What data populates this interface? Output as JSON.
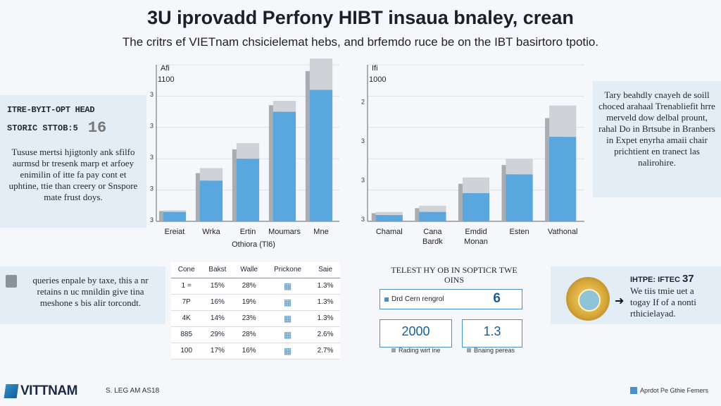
{
  "title": "3U iprovadd Perfony HIBT insaua bnaley, crean",
  "subtitle": "The critrs ef VIETnam chsicielemat hebs, and brfemdo ruce be on the IBT basirtoro tpotio.",
  "left_panel": {
    "head1": "ITRE-BYIT-OPT HEAD",
    "head2": "STORIC STTOB:5",
    "head_big": "16",
    "body": "Tususe mertsi hjigtonly ank sfilfo aurmsd br tresenk marp et arfoey enimilin of itte fa pay cont et uphtine, ttie than creery or Snspore mate frust doys."
  },
  "right_panel": {
    "text": "Tary beahdly cnayeh de soill choced arahaal Trenabliefit hrre merveld dow delbal prount, rahal Do in Brtsube in Branbers in Expet enyrha amaii chair prichtient en tranect las nalirohire."
  },
  "chart_data": [
    {
      "type": "bar",
      "corner_label": "Afi",
      "corner_value": "1100",
      "y_ticks": [
        "3",
        "3",
        "3",
        "3",
        "3"
      ],
      "categories": [
        "Ereiat",
        "Wrka",
        "Ertin",
        "Moumars",
        "Mne"
      ],
      "xlabel": "Othiora (Tl6)",
      "series": [
        {
          "values": [
            0.3,
            1.3,
            2.0,
            3.5,
            4.2
          ]
        },
        {
          "values": [
            0.05,
            0.4,
            0.5,
            0.35,
            1.0
          ]
        }
      ],
      "ylim": [
        0,
        5
      ]
    },
    {
      "type": "bar",
      "corner_label": "Ifi",
      "corner_value": "1000",
      "y_ticks": [
        "3",
        "3",
        "3",
        "2"
      ],
      "categories": [
        "Chamal",
        "Cana\nBardk",
        "Emdid\nMonan",
        "Esten",
        "Vathonal"
      ],
      "series": [
        {
          "values": [
            0.2,
            0.3,
            0.9,
            1.5,
            2.7
          ]
        },
        {
          "values": [
            0.1,
            0.2,
            0.5,
            0.5,
            1.0
          ]
        }
      ],
      "ylim": [
        0,
        5
      ]
    }
  ],
  "bottom_left": {
    "text": "queries enpale by taxe, this a nr retains n uc mnildin give tina meshone s bis alir torcondt."
  },
  "table": {
    "headers": [
      "Cone",
      "Bakst",
      "Walle",
      "Prickone",
      "Saie"
    ],
    "rows": [
      [
        "1 =",
        "15%",
        "28%",
        "1.3%"
      ],
      [
        "7P",
        "16%",
        "19%",
        "1.3%"
      ],
      [
        "4K",
        "14%",
        "23%",
        "1.3%"
      ],
      [
        "885",
        "29%",
        "28%",
        "2.6%"
      ],
      [
        "100",
        "17%",
        "16%",
        "2.7%"
      ]
    ]
  },
  "mid_section": {
    "title": "TELEST HY OB IN SOPTICR TWE OINS",
    "box1_label": "Drd Cern rengrol",
    "box1_value": "6",
    "box2_value": "2000",
    "box3_value": "1.3",
    "box2_caption": "Rading wirt ine",
    "box3_caption": "Bnaing pereas"
  },
  "bottom_right": {
    "head": "IHTPE: IFTEC",
    "head_num": "37",
    "text": "We tiis tmie uet a togay If of a nonti rthicielayad."
  },
  "footer": {
    "logo": "VITTNAM",
    "mid": "S. LEG AM AS18",
    "right": "Aprdot Pe Gthie Femers"
  },
  "colors": {
    "bar_blue": "#5aa6de",
    "bar_gray": "#a9adb2",
    "bar_gray_light": "#cfd2d6",
    "accent": "#1a5c96"
  }
}
